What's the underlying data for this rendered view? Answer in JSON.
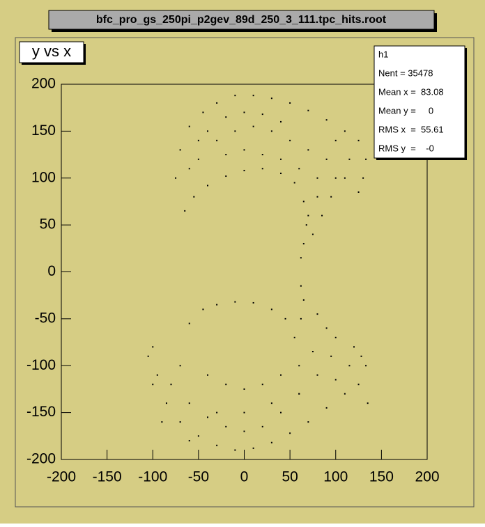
{
  "chart_data": {
    "type": "scatter",
    "file_title": "bfc_pro_gs_250pi_p2gev_89d_250_3_111.tpc_hits.root",
    "title": "y vs x",
    "stats": [
      "h1",
      "Nent = 35478",
      "Mean x =  83.08",
      "Mean y =     0",
      "RMS x  =  55.61",
      "RMS y  =    -0"
    ],
    "xlim": [
      -200,
      200
    ],
    "xticks": [
      -200,
      -150,
      -100,
      -50,
      0,
      50,
      100,
      150,
      200
    ],
    "ylim": [
      -200,
      200
    ],
    "yticks": [
      -200,
      -150,
      -100,
      -50,
      0,
      50,
      100,
      150,
      200
    ],
    "color": "#000000",
    "series": [
      {
        "name": "h1",
        "x": [
          -75,
          -70,
          -60,
          -45,
          -30,
          -10,
          10,
          30,
          50,
          70,
          90,
          110,
          125,
          133,
          130,
          125,
          -65,
          -55,
          -40,
          -20,
          0,
          20,
          40,
          55,
          65,
          68,
          65,
          62,
          -50,
          -30,
          -10,
          10,
          30,
          50,
          70,
          90,
          100,
          95,
          85,
          75,
          -20,
          0,
          20,
          40,
          60,
          80,
          80,
          70,
          -40,
          -20,
          0,
          20,
          40,
          100,
          115,
          110,
          -60,
          -50,
          -100,
          -95,
          -85,
          -70,
          -50,
          -30,
          -10,
          10,
          30,
          50,
          70,
          90,
          110,
          125,
          133,
          135,
          128,
          -60,
          -45,
          -30,
          -10,
          10,
          30,
          45,
          55,
          62,
          65,
          62,
          -80,
          -60,
          -40,
          -20,
          0,
          20,
          40,
          60,
          80,
          95,
          100,
          90,
          80,
          -70,
          -40,
          -20,
          0,
          20,
          40,
          60,
          75,
          -90,
          -60,
          -30,
          0,
          30,
          60,
          100,
          115,
          120,
          -105,
          -100
        ],
        "y": [
          100,
          130,
          155,
          170,
          180,
          188,
          188,
          185,
          180,
          172,
          162,
          150,
          140,
          120,
          100,
          85,
          65,
          80,
          92,
          102,
          108,
          110,
          105,
          95,
          75,
          50,
          30,
          15,
          120,
          140,
          150,
          155,
          150,
          140,
          130,
          120,
          100,
          80,
          60,
          40,
          125,
          130,
          125,
          120,
          110,
          100,
          80,
          60,
          150,
          165,
          170,
          168,
          160,
          140,
          120,
          100,
          110,
          140,
          -80,
          -110,
          -140,
          -160,
          -175,
          -185,
          -190,
          -188,
          -182,
          -172,
          -160,
          -145,
          -130,
          -120,
          -100,
          -140,
          -90,
          -55,
          -40,
          -35,
          -32,
          -33,
          -40,
          -50,
          -70,
          -50,
          -30,
          -15,
          -120,
          -140,
          -155,
          -165,
          -170,
          -165,
          -150,
          -130,
          -110,
          -90,
          -70,
          -60,
          -45,
          -100,
          -110,
          -120,
          -125,
          -120,
          -110,
          -100,
          -85,
          -160,
          -180,
          -150,
          -150,
          -140,
          -130,
          -115,
          -100,
          -80,
          -90,
          -120
        ]
      }
    ]
  }
}
